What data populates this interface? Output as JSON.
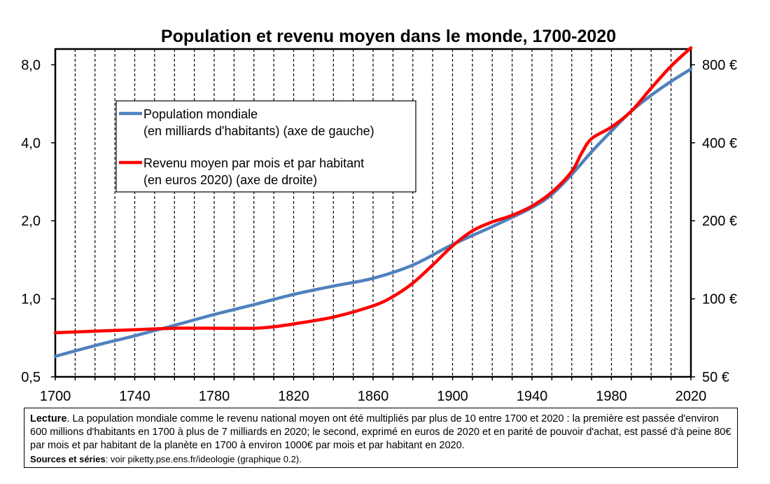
{
  "chart_data": {
    "type": "line",
    "title": "Population et revenu moyen dans le monde, 1700-2020",
    "x_ticks": [
      "1700",
      "1740",
      "1780",
      "1820",
      "1860",
      "1900",
      "1940",
      "1980",
      "2020"
    ],
    "xlim": [
      1700,
      2020
    ],
    "y_left_ticks": [
      "0,5",
      "1,0",
      "2,0",
      "4,0",
      "8,0"
    ],
    "y_left_scale": "log",
    "y_left_lim": [
      0.5,
      9.2
    ],
    "y_right_ticks": [
      "50 €",
      "100 €",
      "200 €",
      "400 €",
      "800 €"
    ],
    "y_right_scale": "log",
    "y_right_lim": [
      50,
      920
    ],
    "grid": "vertical",
    "legend_placement": "upper-left inside plot",
    "series": [
      {
        "name": "Population mondiale",
        "name_line2": "(en milliards d'habitants) (axe de gauche)",
        "axis": "left",
        "color": "#4f81bd",
        "points": [
          [
            1700,
            0.6
          ],
          [
            1720,
            0.66
          ],
          [
            1740,
            0.72
          ],
          [
            1760,
            0.79
          ],
          [
            1780,
            0.87
          ],
          [
            1800,
            0.95
          ],
          [
            1820,
            1.04
          ],
          [
            1840,
            1.12
          ],
          [
            1860,
            1.2
          ],
          [
            1880,
            1.35
          ],
          [
            1900,
            1.62
          ],
          [
            1920,
            1.9
          ],
          [
            1940,
            2.25
          ],
          [
            1950,
            2.53
          ],
          [
            1960,
            3.02
          ],
          [
            1970,
            3.69
          ],
          [
            1980,
            4.44
          ],
          [
            1990,
            5.3
          ],
          [
            2000,
            6.1
          ],
          [
            2010,
            6.9
          ],
          [
            2020,
            7.7
          ]
        ]
      },
      {
        "name": "Revenu moyen par mois et par habitant",
        "name_line2": "(en euros 2020) (axe de droite)",
        "axis": "right",
        "color": "#ff0000",
        "points": [
          [
            1700,
            74
          ],
          [
            1720,
            75
          ],
          [
            1740,
            76
          ],
          [
            1760,
            77
          ],
          [
            1780,
            77
          ],
          [
            1800,
            77
          ],
          [
            1810,
            78
          ],
          [
            1820,
            80
          ],
          [
            1840,
            85
          ],
          [
            1860,
            94
          ],
          [
            1870,
            102
          ],
          [
            1880,
            115
          ],
          [
            1890,
            135
          ],
          [
            1900,
            160
          ],
          [
            1910,
            183
          ],
          [
            1920,
            198
          ],
          [
            1930,
            210
          ],
          [
            1940,
            228
          ],
          [
            1950,
            258
          ],
          [
            1960,
            310
          ],
          [
            1965,
            365
          ],
          [
            1970,
            415
          ],
          [
            1980,
            460
          ],
          [
            1990,
            530
          ],
          [
            2000,
            650
          ],
          [
            2010,
            790
          ],
          [
            2020,
            930
          ]
        ]
      }
    ]
  },
  "note": {
    "label": "Lecture",
    "text": ". La population mondiale comme le revenu national moyen ont été multipliés par plus de 10 entre 1700 et 2020 : la première est passée d'environ 600 millions d'habitants en 1700 à plus de 7 milliards en 2020; le second, exprimé en euros de 2020 et en parité de pouvoir d'achat, est passé d'à peine 80€ par mois et par habitant de la planète en 1700 à environ 1000€ par mois et par habitant en 2020.",
    "sources_label": "Sources et séries",
    "sources_text": ": voir piketty.pse.ens.fr/ideologie (graphique 0.2)."
  }
}
